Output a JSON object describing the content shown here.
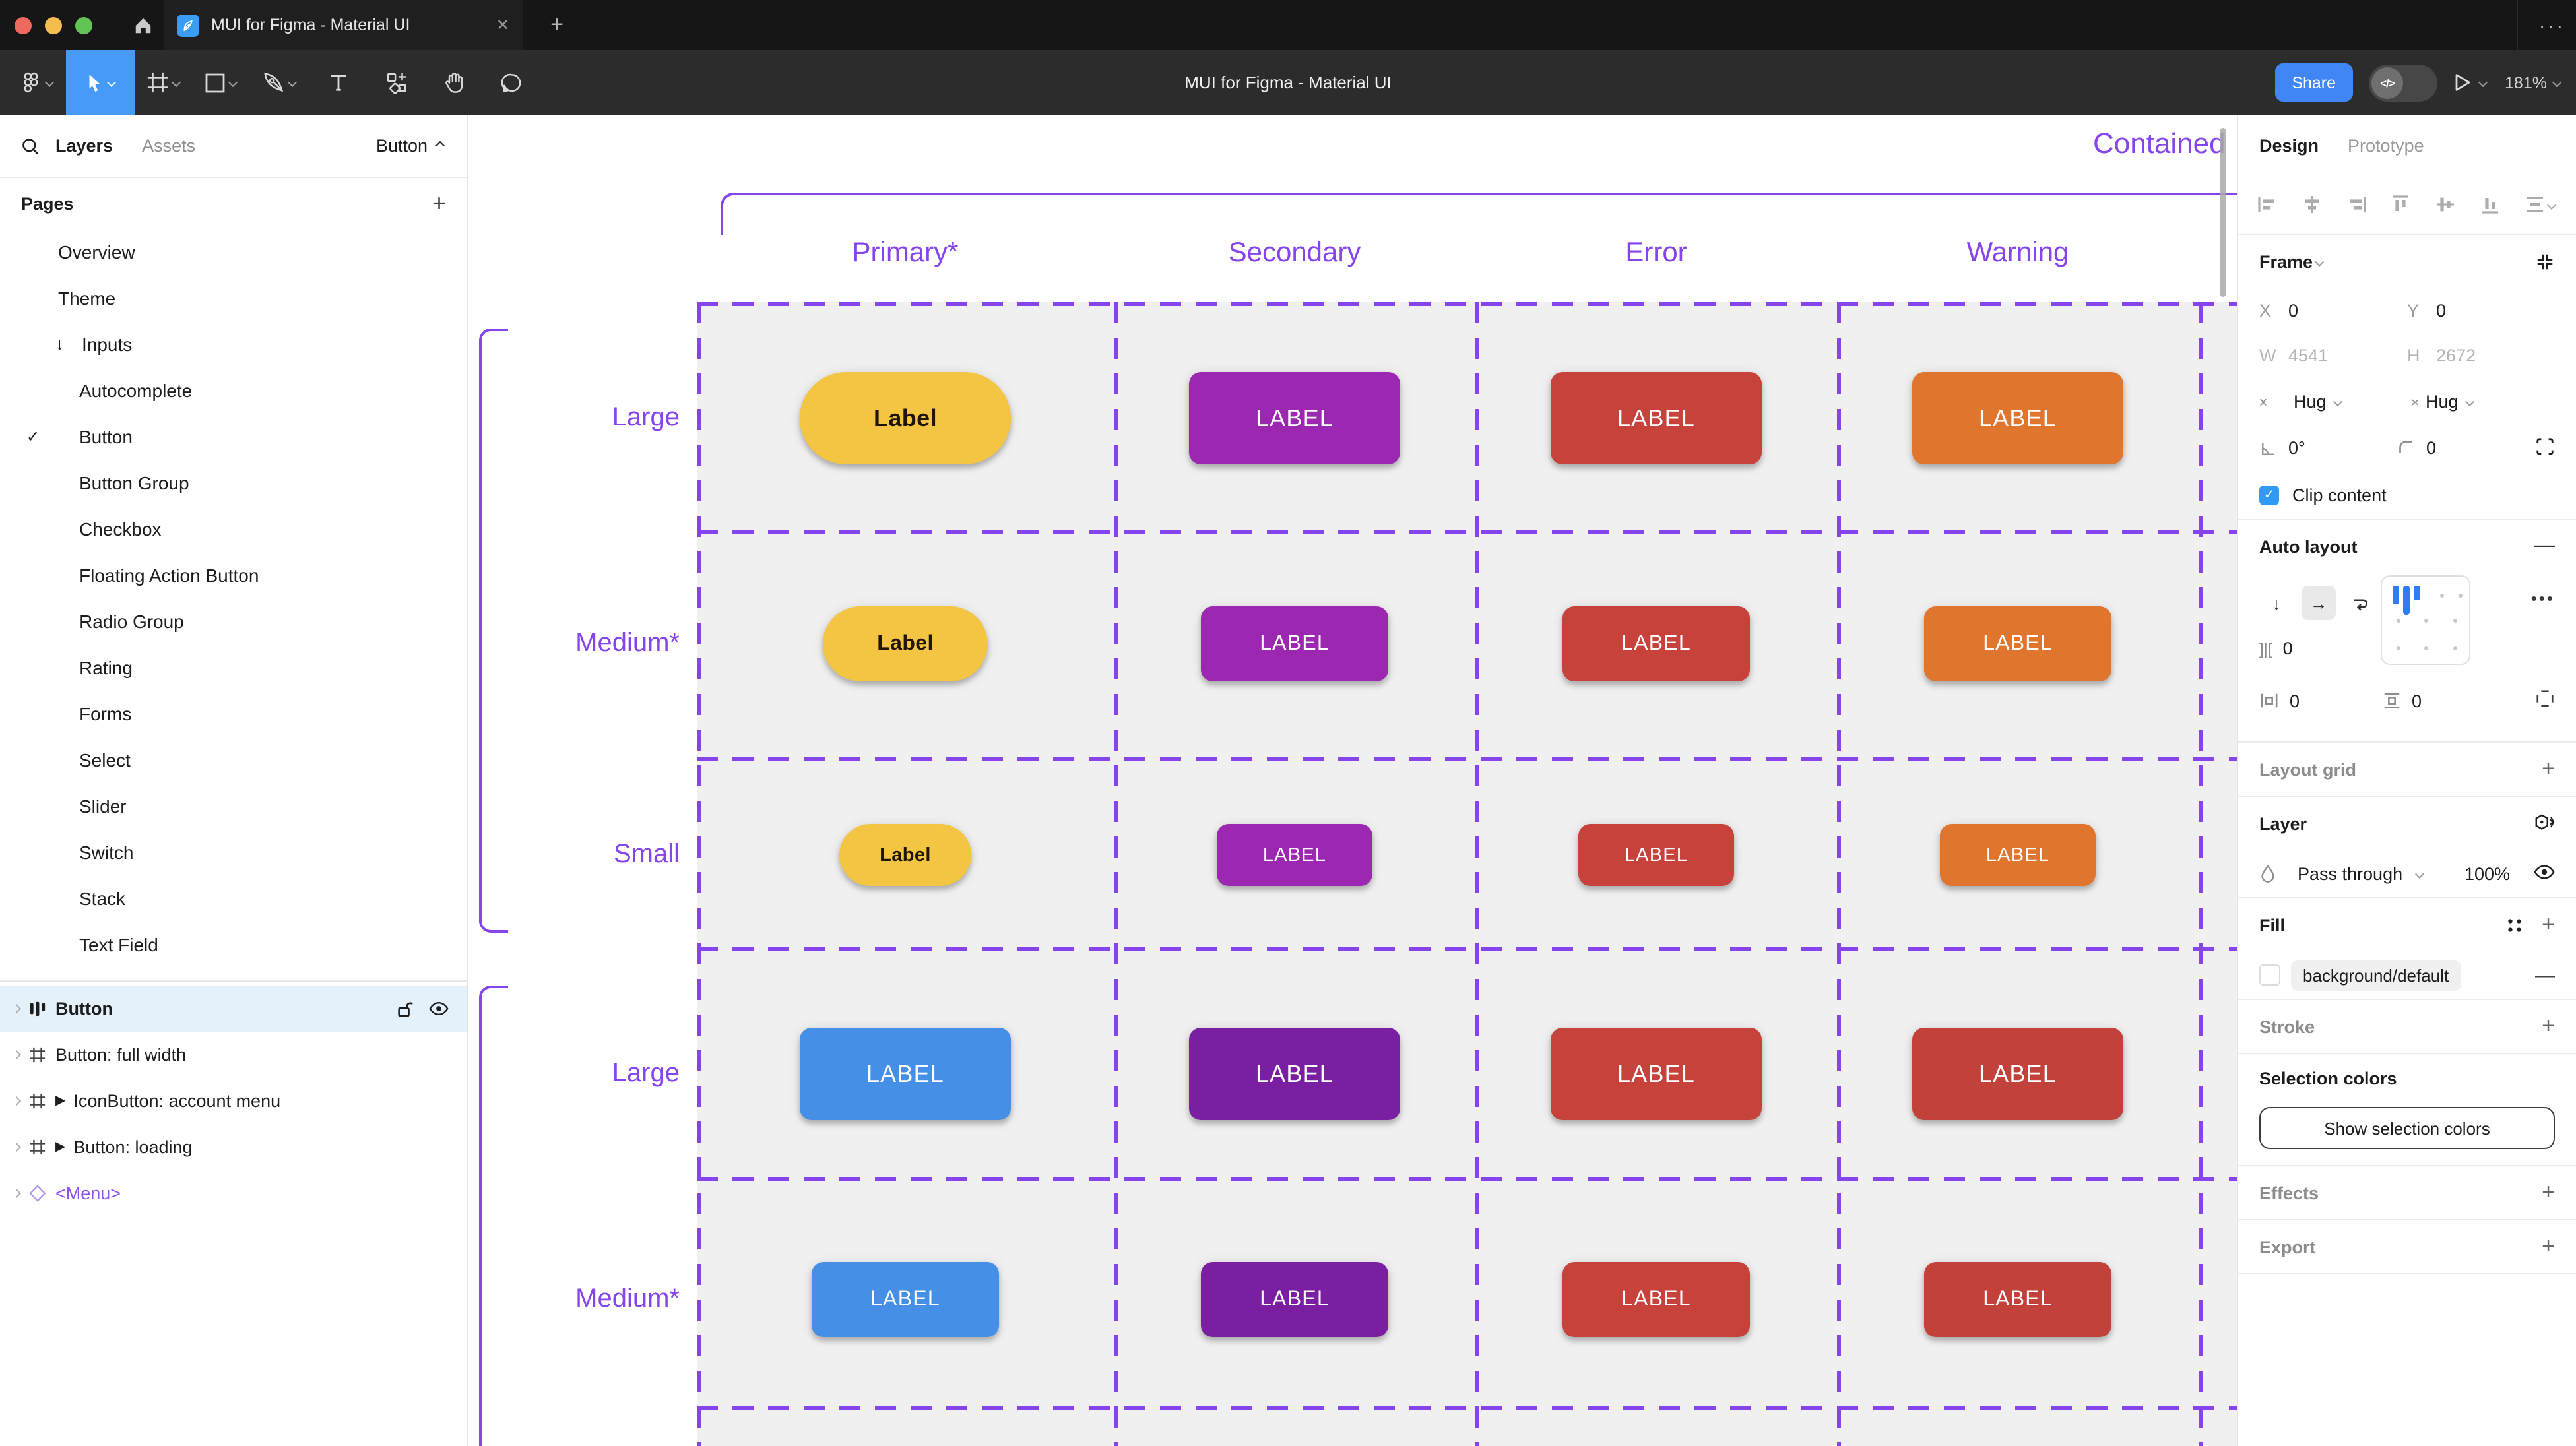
{
  "window": {
    "tab_title": "MUI for Figma - Material UI",
    "tab_close": "✕",
    "new_tab": "+",
    "more": "···"
  },
  "toolbar": {
    "document_title": "MUI for Figma - Material UI",
    "share_label": "Share",
    "dev_toggle_glyph": "</>",
    "zoom_level": "181%",
    "tools": [
      "main-menu",
      "move",
      "frame",
      "shape",
      "pen",
      "text",
      "resources",
      "hand",
      "comment"
    ]
  },
  "sidebar": {
    "tabs": {
      "layers": "Layers",
      "assets": "Assets"
    },
    "page_selector": "Button",
    "pages_header": "Pages",
    "pages": [
      {
        "label": "Overview"
      },
      {
        "label": "Theme"
      },
      {
        "label": "Inputs",
        "arrow": "↓"
      },
      {
        "label": "Autocomplete",
        "sub": true
      },
      {
        "label": "Button",
        "sub": true,
        "checked": true
      },
      {
        "label": "Button Group",
        "sub": true
      },
      {
        "label": "Checkbox",
        "sub": true
      },
      {
        "label": "Floating Action Button",
        "sub": true
      },
      {
        "label": "Radio Group",
        "sub": true
      },
      {
        "label": "Rating",
        "sub": true
      },
      {
        "label": "Forms",
        "sub": true
      },
      {
        "label": "Select",
        "sub": true
      },
      {
        "label": "Slider",
        "sub": true
      },
      {
        "label": "Switch",
        "sub": true
      },
      {
        "label": "Stack",
        "sub": true
      },
      {
        "label": "Text Field",
        "sub": true
      }
    ],
    "layers": [
      {
        "name": "Button",
        "icon": "auto-layout",
        "selected": true
      },
      {
        "name": "Button: full width",
        "icon": "frame"
      },
      {
        "name": "IconButton: account menu",
        "icon": "frame",
        "play": "▶"
      },
      {
        "name": "Button: loading",
        "icon": "frame",
        "play": "▶"
      },
      {
        "name": "<Menu>",
        "icon": "component",
        "component": true
      }
    ]
  },
  "canvas": {
    "frame_label": "Contained",
    "columns": [
      "Primary*",
      "Secondary",
      "Error",
      "Warning"
    ],
    "colors": {
      "annotation_purple": "#8645EC",
      "table_bg": "#F1F0F1",
      "primary_yellow": "#F4C542",
      "primary_blue": "#4590E6",
      "secondary_purple": "#9C27B0",
      "secondary_purple_dark": "#7B1FA2",
      "error_red": "#C8423C",
      "warning_orange": "#E0762D",
      "warning_red": "#C2413A"
    },
    "sections": [
      {
        "rows": [
          {
            "label": "Large",
            "size": "large",
            "cells": [
              {
                "text": "Label",
                "bg": "#F4C542",
                "fg": "#211605",
                "pill": true
              },
              {
                "text": "LABEL",
                "bg": "#9C27B0"
              },
              {
                "text": "LABEL",
                "bg": "#C8423C"
              },
              {
                "text": "LABEL",
                "bg": "#E0762D"
              }
            ]
          },
          {
            "label": "Medium*",
            "size": "medium",
            "cells": [
              {
                "text": "Label",
                "bg": "#F4C542",
                "fg": "#211605",
                "pill": true
              },
              {
                "text": "LABEL",
                "bg": "#9C27B0"
              },
              {
                "text": "LABEL",
                "bg": "#C8423C"
              },
              {
                "text": "LABEL",
                "bg": "#E0762D"
              }
            ]
          },
          {
            "label": "Small",
            "size": "small",
            "cells": [
              {
                "text": "Label",
                "bg": "#F4C542",
                "fg": "#211605",
                "pill": true
              },
              {
                "text": "LABEL",
                "bg": "#9C27B0"
              },
              {
                "text": "LABEL",
                "bg": "#C8423C"
              },
              {
                "text": "LABEL",
                "bg": "#E0762D"
              }
            ]
          }
        ]
      },
      {
        "rows": [
          {
            "label": "Large",
            "size": "large",
            "cells": [
              {
                "text": "LABEL",
                "bg": "#4590E6"
              },
              {
                "text": "LABEL",
                "bg": "#7B1FA2"
              },
              {
                "text": "LABEL",
                "bg": "#C8423C"
              },
              {
                "text": "LABEL",
                "bg": "#C2413A"
              }
            ]
          },
          {
            "label": "Medium*",
            "size": "medium",
            "cells": [
              {
                "text": "LABEL",
                "bg": "#4590E6"
              },
              {
                "text": "LABEL",
                "bg": "#7B1FA2"
              },
              {
                "text": "LABEL",
                "bg": "#C8423C"
              },
              {
                "text": "LABEL",
                "bg": "#C2413A"
              }
            ]
          }
        ]
      }
    ]
  },
  "inspector": {
    "tabs": {
      "design": "Design",
      "prototype": "Prototype"
    },
    "frame": {
      "header": "Frame",
      "x_label": "X",
      "x": "0",
      "y_label": "Y",
      "y": "0",
      "w_label": "W",
      "w": "4541",
      "h_label": "H",
      "h": "2672",
      "h_sizing": "Hug",
      "v_sizing": "Hug",
      "rotation": "0°",
      "corner_radius": "0",
      "clip_label": "Clip content"
    },
    "auto_layout": {
      "header": "Auto layout",
      "gap": "0",
      "padding_h": "0",
      "padding_v": "0",
      "more": "•••"
    },
    "layout_grid": {
      "header": "Layout grid"
    },
    "layer": {
      "header": "Layer",
      "blend_mode": "Pass through",
      "opacity": "100%"
    },
    "fill": {
      "header": "Fill",
      "token": "background/default"
    },
    "stroke": {
      "header": "Stroke"
    },
    "selection_colors": {
      "header": "Selection colors",
      "button_label": "Show selection colors"
    },
    "effects": {
      "header": "Effects"
    },
    "export": {
      "header": "Export"
    }
  }
}
